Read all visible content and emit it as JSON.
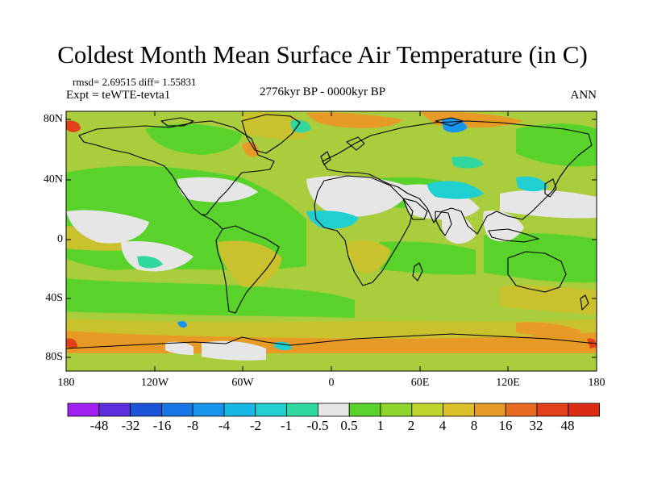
{
  "title": "Coldest Month Mean Surface Air Temperature (in C)",
  "stats": "rmsd= 2.69515  diff= 1.55831",
  "experiment": "Expt = teWTE-tevta1",
  "period": "2776kyr BP - 0000kyr BP",
  "season": "ANN",
  "map": {
    "lon_range": [
      -180,
      180
    ],
    "lat_range": [
      -90,
      90
    ],
    "lat_ticks": [
      "80N",
      "40N",
      "0",
      "40S",
      "80S"
    ],
    "lon_ticks": [
      "180",
      "120W",
      "60W",
      "0",
      "60E",
      "120E",
      "180"
    ],
    "background_color": "#aacd3e"
  },
  "colorbar": {
    "labels": [
      "-48",
      "-32",
      "-16",
      "-8",
      "-4",
      "-2",
      "-1",
      "-0.5",
      "0.5",
      "1",
      "2",
      "4",
      "8",
      "16",
      "32",
      "48"
    ],
    "colors": [
      "#a020f0",
      "#5d2de0",
      "#1a52d8",
      "#1776e6",
      "#1896ee",
      "#18b8e6",
      "#20d0d0",
      "#30d8a0",
      "#e6e6e6",
      "#5ad22c",
      "#8ed62c",
      "#bed62c",
      "#dcc02a",
      "#e89a26",
      "#e66a20",
      "#e2401a",
      "#dc2a14"
    ]
  }
}
